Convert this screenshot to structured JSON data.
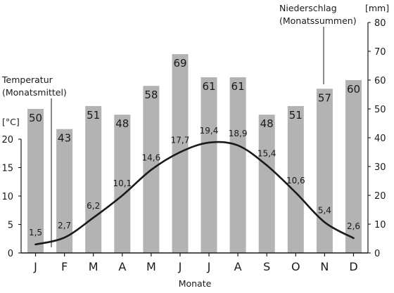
{
  "chart_data": {
    "type": "bar",
    "categories": [
      "J",
      "F",
      "M",
      "A",
      "M",
      "J",
      "J",
      "A",
      "S",
      "O",
      "N",
      "D"
    ],
    "series": [
      {
        "name": "Niederschlag (Monatssummen)",
        "type": "bar",
        "axis": "right",
        "unit": "[mm]",
        "values": [
          50,
          43,
          51,
          48,
          58,
          69,
          61,
          61,
          48,
          51,
          57,
          60
        ],
        "labels": [
          "50",
          "43",
          "51",
          "48",
          "58",
          "69",
          "61",
          "61",
          "48",
          "51",
          "57",
          "60"
        ]
      },
      {
        "name": "Temperatur (Monatsmittel)",
        "type": "line",
        "axis": "left",
        "unit": "[°C]",
        "values": [
          1.5,
          2.7,
          6.2,
          10.1,
          14.6,
          17.7,
          19.4,
          18.9,
          15.4,
          10.6,
          5.4,
          2.6
        ],
        "labels": [
          "1,5",
          "2,7",
          "6,2",
          "10,1",
          "14,6",
          "17,7",
          "19,4",
          "18,9",
          "15,4",
          "10,6",
          "5,4",
          "2,6"
        ]
      }
    ],
    "xlabel": "Monate",
    "y_left": {
      "label": "[°C]",
      "range": [
        0,
        20
      ],
      "ticks": [
        "0",
        "5",
        "10",
        "15",
        "20"
      ]
    },
    "y_right": {
      "label": "[mm]",
      "range": [
        0,
        80
      ],
      "ticks": [
        "0",
        "10",
        "20",
        "30",
        "40",
        "50",
        "60",
        "70",
        "80"
      ]
    },
    "annotations": {
      "temperature_line1": "Temperatur",
      "temperature_line2": "(Monatsmittel)",
      "precip_line1": "Niederschlag",
      "precip_line2": "(Monatssummen)"
    },
    "colors": {
      "bar": "#b3b3b3",
      "line": "#1a1a1a",
      "axis": "#1a1a1a"
    },
    "grid": false
  }
}
